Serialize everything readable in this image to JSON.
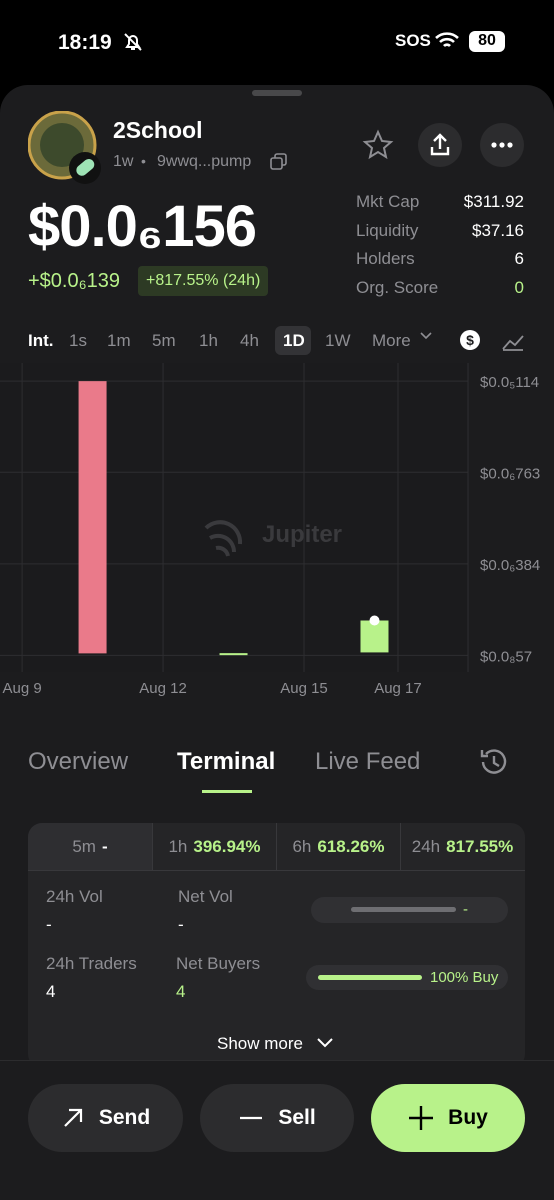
{
  "status": {
    "time": "18:19",
    "sos": "SOS",
    "battery": "80"
  },
  "token": {
    "name": "2School",
    "age": "1w",
    "separator": "•",
    "address": "9wwq...pump",
    "price": "$0.0₆156",
    "change": "+$0.0₆139",
    "change_pct": "+817.55% (24h)"
  },
  "stats": [
    {
      "label": "Mkt Cap",
      "value": "$311.92"
    },
    {
      "label": "Liquidity",
      "value": "$37.16"
    },
    {
      "label": "Holders",
      "value": "6"
    },
    {
      "label": "Org. Score",
      "value": "0"
    }
  ],
  "intervals": [
    "Int.",
    "1s",
    "1m",
    "5m",
    "1h",
    "4h",
    "1D",
    "1W",
    "More"
  ],
  "chart_data": {
    "type": "candlestick",
    "watermark": "Jupiter",
    "x": [
      10.5,
      13.5,
      16.5
    ],
    "open": [
      1.14e-06,
      1.3e-08,
      1.8e-08
    ],
    "close": [
      1.4e-08,
      1.5e-08,
      1.5e-07
    ],
    "up_color": "#b8f28a",
    "down_color": "#ea7a8a",
    "xlim": [
      8.53,
      18.49
    ],
    "xticks": [
      {
        "value": 9,
        "label": "Aug 9"
      },
      {
        "value": 12,
        "label": "Aug 12"
      },
      {
        "value": 15,
        "label": "Aug 15"
      },
      {
        "value": 17,
        "label": "Aug 17"
      }
    ],
    "ylim": [
      -6.3e-08,
      1.215e-06
    ],
    "yticks": [
      {
        "value": 5.7e-09,
        "label": "$0.0₈57"
      },
      {
        "value": 3.84e-07,
        "label": "$0.0₆384"
      },
      {
        "value": 7.63e-07,
        "label": "$0.0₆763"
      },
      {
        "value": 1.14e-06,
        "label": "$0.0₅114"
      }
    ],
    "grid": true
  },
  "tabs": [
    "Overview",
    "Terminal",
    "Live Feed"
  ],
  "periods": [
    {
      "label": "5m",
      "value": "-"
    },
    {
      "label": "1h",
      "value": "396.94%"
    },
    {
      "label": "6h",
      "value": "618.26%"
    },
    {
      "label": "24h",
      "value": "817.55%"
    }
  ],
  "metrics": {
    "vol_label": "24h Vol",
    "vol": "-",
    "net_vol_label": "Net Vol",
    "net_vol": "-",
    "net_vol_bar": "-",
    "traders_label": "24h Traders",
    "traders": "4",
    "net_buyers_label": "Net Buyers",
    "net_buyers": "4",
    "buy_bar": "100% Buy"
  },
  "show_more": "Show more",
  "actions": [
    "Send",
    "Sell",
    "Buy"
  ]
}
